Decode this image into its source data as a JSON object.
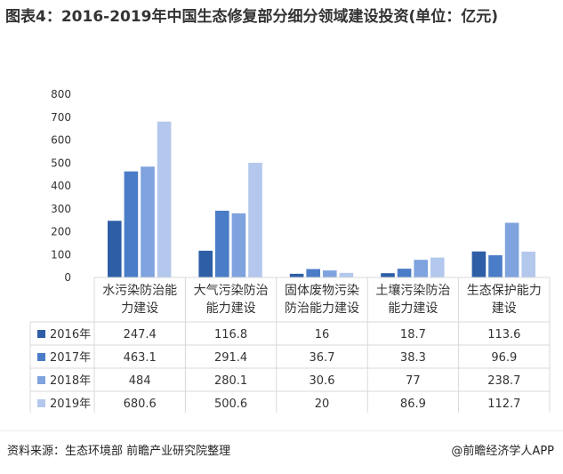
{
  "title": "图表4：2016-2019年中国生态修复部分细分领域建设投资(单位：亿元)",
  "source": "资料来源：生态环境部 前瞻产业研究院整理",
  "credit": "@前瞻经济学人APP",
  "colors": {
    "s2016": "#2e5ea6",
    "s2017": "#4a7cc7",
    "s2018": "#7ea3de",
    "s2019": "#b3c8ec",
    "grid": "#d9d9d9",
    "text": "#333333"
  },
  "chart_data": {
    "type": "bar",
    "title": "图表4：2016-2019年中国生态修复部分细分领域建设投资(单位：亿元)",
    "categories": [
      "水污染防治能力建设",
      "大气污染防治能力建设",
      "固体废物污染防治能力建设",
      "土壤污染防治能力建设",
      "生态保护能力建设"
    ],
    "category_lines": [
      [
        "水污染防治能",
        "力建设"
      ],
      [
        "大气污染防治",
        "能力建设"
      ],
      [
        "固体废物污染",
        "防治能力建设"
      ],
      [
        "土壤污染防治",
        "能力建设"
      ],
      [
        "生态保护能力",
        "建设"
      ]
    ],
    "ylim": [
      0,
      800
    ],
    "yticks": [
      0,
      100,
      200,
      300,
      400,
      500,
      600,
      700,
      800
    ],
    "grid": false,
    "legend": "data-table",
    "series": [
      {
        "name": "2016年",
        "values": [
          247.4,
          116.8,
          16,
          18.7,
          113.6
        ]
      },
      {
        "name": "2017年",
        "values": [
          463.1,
          291.4,
          36.7,
          38.3,
          96.9
        ]
      },
      {
        "name": "2018年",
        "values": [
          484,
          280.1,
          30.6,
          77,
          238.7
        ]
      },
      {
        "name": "2019年",
        "values": [
          680.6,
          500.6,
          20,
          86.9,
          112.7
        ]
      }
    ]
  }
}
